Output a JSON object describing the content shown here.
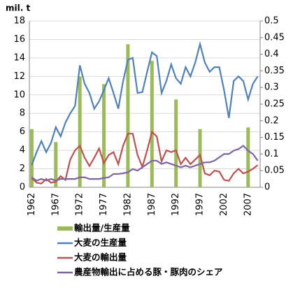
{
  "chart_data": {
    "type": "combo",
    "y_label": "mil. t",
    "categories": [
      "1962",
      null,
      null,
      null,
      null,
      "1967",
      null,
      null,
      null,
      null,
      "1972",
      null,
      null,
      null,
      null,
      "1977",
      null,
      null,
      null,
      null,
      "1982",
      null,
      null,
      null,
      null,
      "1987",
      null,
      null,
      null,
      null,
      "1992",
      null,
      null,
      null,
      null,
      "1997",
      null,
      null,
      null,
      null,
      "2002",
      null,
      null,
      null,
      null,
      "2007",
      null,
      null
    ],
    "ylim": [
      0,
      18
    ],
    "yticks": [
      0,
      2,
      4,
      6,
      8,
      10,
      12,
      14,
      16,
      18
    ],
    "y2lim": [
      0,
      0.5
    ],
    "y2ticks": [
      0,
      0.05,
      0.1,
      0.15,
      0.2,
      0.25,
      0.3,
      0.35,
      0.4,
      0.45,
      0.5
    ],
    "grid": true,
    "series": [
      {
        "name": "輸出量/生産量",
        "type": "bar",
        "axis": "y2",
        "color": "#9bbb59",
        "values": [
          0.175,
          null,
          null,
          null,
          null,
          0.136,
          null,
          null,
          null,
          null,
          0.333,
          null,
          null,
          null,
          null,
          0.31,
          null,
          null,
          null,
          null,
          0.43,
          null,
          null,
          null,
          null,
          0.38,
          null,
          null,
          null,
          null,
          0.264,
          null,
          null,
          null,
          null,
          0.175,
          null,
          null,
          null,
          null,
          null,
          null,
          null,
          null,
          null,
          0.18,
          null,
          null
        ]
      },
      {
        "name": "大麦の生産量",
        "type": "line",
        "color": "#4f81bd",
        "values": [
          2.4,
          3.8,
          5.0,
          3.8,
          4.8,
          6.5,
          5.5,
          7.0,
          8.0,
          8.8,
          13.2,
          11.2,
          10.2,
          8.5,
          9.3,
          10.5,
          11.8,
          10.2,
          8.5,
          11.5,
          13.8,
          14.0,
          10.2,
          10.3,
          12.5,
          14.6,
          14.2,
          10.2,
          11.5,
          13.3,
          11.8,
          11.2,
          13.0,
          12.0,
          13.5,
          15.5,
          13.5,
          12.5,
          13.0,
          13.0,
          10.5,
          7.5,
          11.5,
          12.0,
          11.5,
          9.5,
          11.2,
          12.0
        ]
      },
      {
        "name": "大麦の輸出量",
        "type": "line",
        "color": "#c0504d",
        "values": [
          1.0,
          0.5,
          0.4,
          0.9,
          0.5,
          0.6,
          1.2,
          0.8,
          3.0,
          4.0,
          4.5,
          3.2,
          2.3,
          3.2,
          4.2,
          2.6,
          3.5,
          3.8,
          2.5,
          4.5,
          5.8,
          5.8,
          3.5,
          2.2,
          4.0,
          6.0,
          5.5,
          2.8,
          4.0,
          3.8,
          4.0,
          2.5,
          3.2,
          2.5,
          3.0,
          3.5,
          1.5,
          1.3,
          1.8,
          1.7,
          0.8,
          0.7,
          1.5,
          2.0,
          1.5,
          1.7,
          2.0,
          2.4
        ]
      },
      {
        "name": "農産物輸出に占める豚・豚肉のシェア",
        "type": "line",
        "axis": "y2",
        "color": "#8064a2",
        "values": [
          0.03,
          0.02,
          0.025,
          0.02,
          0.025,
          0.02,
          0.025,
          0.025,
          0.025,
          0.025,
          0.03,
          0.03,
          0.025,
          0.025,
          0.025,
          0.028,
          0.03,
          0.04,
          0.04,
          0.042,
          0.045,
          0.055,
          0.05,
          0.06,
          0.07,
          0.08,
          0.08,
          0.07,
          0.075,
          0.07,
          0.065,
          0.06,
          0.065,
          0.06,
          0.065,
          0.07,
          0.075,
          0.075,
          0.08,
          0.09,
          0.1,
          0.1,
          0.11,
          0.115,
          0.125,
          0.11,
          0.1,
          0.08
        ]
      }
    ]
  }
}
